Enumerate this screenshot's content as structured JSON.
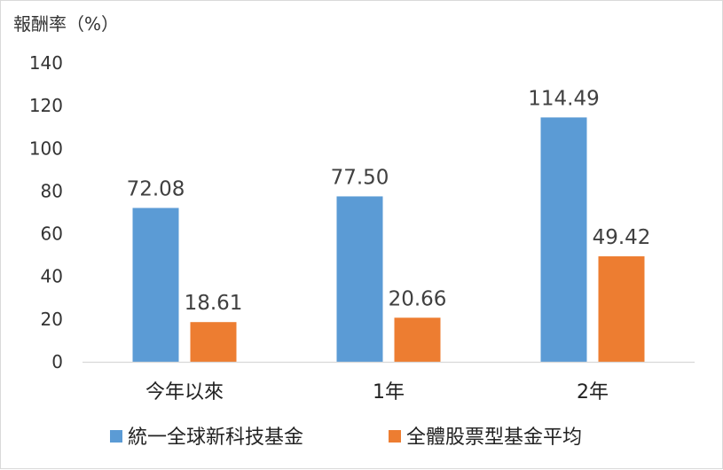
{
  "chart_data": {
    "type": "bar",
    "ylabel": "報酬率（%）",
    "categories": [
      "今年以來",
      "1年",
      "2年"
    ],
    "series": [
      {
        "name": "統一全球新科技基金",
        "values": [
          72.08,
          77.5,
          114.49
        ],
        "color": "#5b9bd5"
      },
      {
        "name": "全體股票型基金平均",
        "values": [
          18.61,
          20.66,
          49.42
        ],
        "color": "#ed7d31"
      }
    ],
    "data_labels": [
      [
        "72.08",
        "77.50",
        "114.49"
      ],
      [
        "18.61",
        "20.66",
        "49.42"
      ]
    ],
    "ylim": [
      0,
      140
    ],
    "yticks": [
      "0",
      "20",
      "40",
      "60",
      "80",
      "100",
      "120",
      "140"
    ],
    "grid": false,
    "legend_position": "bottom"
  }
}
